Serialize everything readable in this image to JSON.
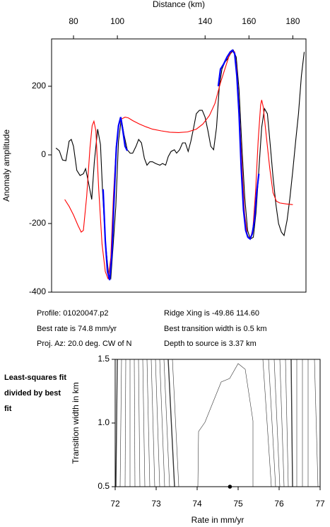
{
  "chart_data": [
    {
      "type": "line",
      "x_label": "Distance (km)",
      "y_label": "Anomaly amplitude",
      "xlim": [
        70,
        186
      ],
      "ylim": [
        -400,
        338
      ],
      "xticks": [
        80,
        100,
        140,
        160,
        180
      ],
      "yticks": [
        -400,
        -200,
        0,
        200
      ],
      "series": [
        {
          "color": "#000000",
          "x": [
            72,
            73.5,
            75,
            76.5,
            78,
            79,
            80,
            81.5,
            83,
            84.5,
            85.5,
            86.5,
            88.3,
            89.5,
            91,
            92.3,
            93.2,
            94.5,
            96,
            97,
            98,
            99.3,
            100.5,
            101.8,
            103,
            104.5,
            105.8,
            107,
            108.5,
            109.7,
            111,
            112.3,
            113.5,
            114.8,
            116,
            117.4,
            119.4,
            120.6,
            122,
            123.2,
            124.5,
            126,
            127,
            128.4,
            129.7,
            131,
            132.3,
            133.5,
            134.8,
            136,
            137.4,
            138.7,
            140,
            141.3,
            142.6,
            143.9,
            145.2,
            146.5,
            147.7,
            149,
            150.3,
            151.6,
            152.9,
            154.2,
            155.5,
            156.8,
            158.1,
            159.4,
            160.6,
            162,
            163.2,
            164.5,
            165.8,
            167.1,
            168.4,
            169.7,
            171,
            172.3,
            173.5,
            174.8,
            176,
            177.4,
            178.7,
            180,
            181.3,
            182.6,
            183.9,
            185.2
          ],
          "values": [
            20,
            12,
            -15,
            -17,
            40,
            45,
            25,
            -45,
            -60,
            -55,
            -40,
            -70,
            -130,
            -20,
            75,
            30,
            -100,
            -250,
            -350,
            -360,
            -270,
            -150,
            40,
            105,
            60,
            15,
            5,
            5,
            25,
            45,
            35,
            -10,
            -30,
            -20,
            -20,
            -25,
            -30,
            -25,
            -30,
            -5,
            10,
            15,
            5,
            15,
            35,
            35,
            10,
            40,
            80,
            120,
            130,
            130,
            110,
            70,
            25,
            15,
            80,
            200,
            250,
            270,
            280,
            295,
            305,
            285,
            190,
            20,
            -125,
            -220,
            -245,
            -240,
            -170,
            -45,
            80,
            135,
            120,
            30,
            -65,
            -145,
            -200,
            -225,
            -235,
            -190,
            -125,
            -45,
            40,
            120,
            230,
            300
          ]
        },
        {
          "color": "#ff0000",
          "x": [
            76,
            78,
            80,
            82,
            83.5,
            84.5,
            86,
            87.5,
            88.5,
            89.3,
            90.2,
            91.5,
            93,
            94.5,
            95.8,
            97,
            98.2,
            99.5,
            100.8,
            102,
            103.5,
            105,
            107,
            110,
            113,
            116,
            120,
            124,
            128,
            132,
            136,
            139,
            142,
            144.5,
            147,
            149,
            151,
            152.5,
            153.5,
            154.5,
            155.5,
            156.8,
            158,
            159.3,
            160.6,
            161.8,
            163,
            164.2,
            165.3,
            165.8,
            166.5,
            168,
            169.5,
            171,
            172.5,
            174,
            177,
            180
          ],
          "values": [
            -130,
            -150,
            -175,
            -205,
            -225,
            -220,
            -120,
            20,
            85,
            98,
            70,
            -100,
            -260,
            -340,
            -362,
            -300,
            -120,
            30,
            90,
            105,
            110,
            108,
            100,
            90,
            82,
            75,
            70,
            66,
            65,
            67,
            75,
            90,
            115,
            150,
            210,
            250,
            290,
            305,
            300,
            250,
            140,
            -30,
            -170,
            -235,
            -245,
            -215,
            -110,
            40,
            145,
            160,
            140,
            50,
            -40,
            -110,
            -135,
            -140,
            -143,
            -145
          ]
        },
        {
          "color": "#0000ff",
          "x": [
            93.5,
            94.5,
            95.5,
            96.5,
            97.5,
            98.5,
            99.5,
            100.5,
            101.5,
            102.5,
            103.5,
            104.5,
            null,
            146,
            147,
            148.5,
            150,
            151.5,
            152.5,
            153.5,
            154.5,
            155.5,
            156.5,
            157.5,
            158.5,
            159.5,
            160.5,
            161.5,
            162.5,
            163.5,
            164.5
          ],
          "values": [
            -100,
            -250,
            -340,
            -365,
            -290,
            -130,
            20,
            85,
            110,
            70,
            25,
            12,
            null,
            200,
            250,
            265,
            285,
            300,
            305,
            295,
            230,
            120,
            -40,
            -160,
            -220,
            -240,
            -245,
            -230,
            -190,
            -110,
            -55
          ]
        }
      ],
      "annotations": [
        "Profile: 01020047.p2",
        "Ridge Xing is -49.86 114.60",
        "Best rate is 74.8 mm/yr",
        "Best transition width is 0.5 km",
        "Proj. Az: 20.0 deg. CW of N",
        "Depth to source is   3.37 km"
      ]
    },
    {
      "type": "contour",
      "title": "Least-squares fit divided by best fit",
      "x_label": "Rate in mm/yr",
      "y_label": "Transition width in km",
      "xlim": [
        72,
        77
      ],
      "ylim": [
        0.5,
        1.5
      ],
      "xticks": [
        72,
        73,
        74,
        75,
        76,
        77
      ],
      "yticks": [
        0.5,
        {
          "value": 1,
          "label": "1.0"
        },
        1.5
      ],
      "best_point": {
        "x": 74.8,
        "y": 0.5
      }
    }
  ]
}
